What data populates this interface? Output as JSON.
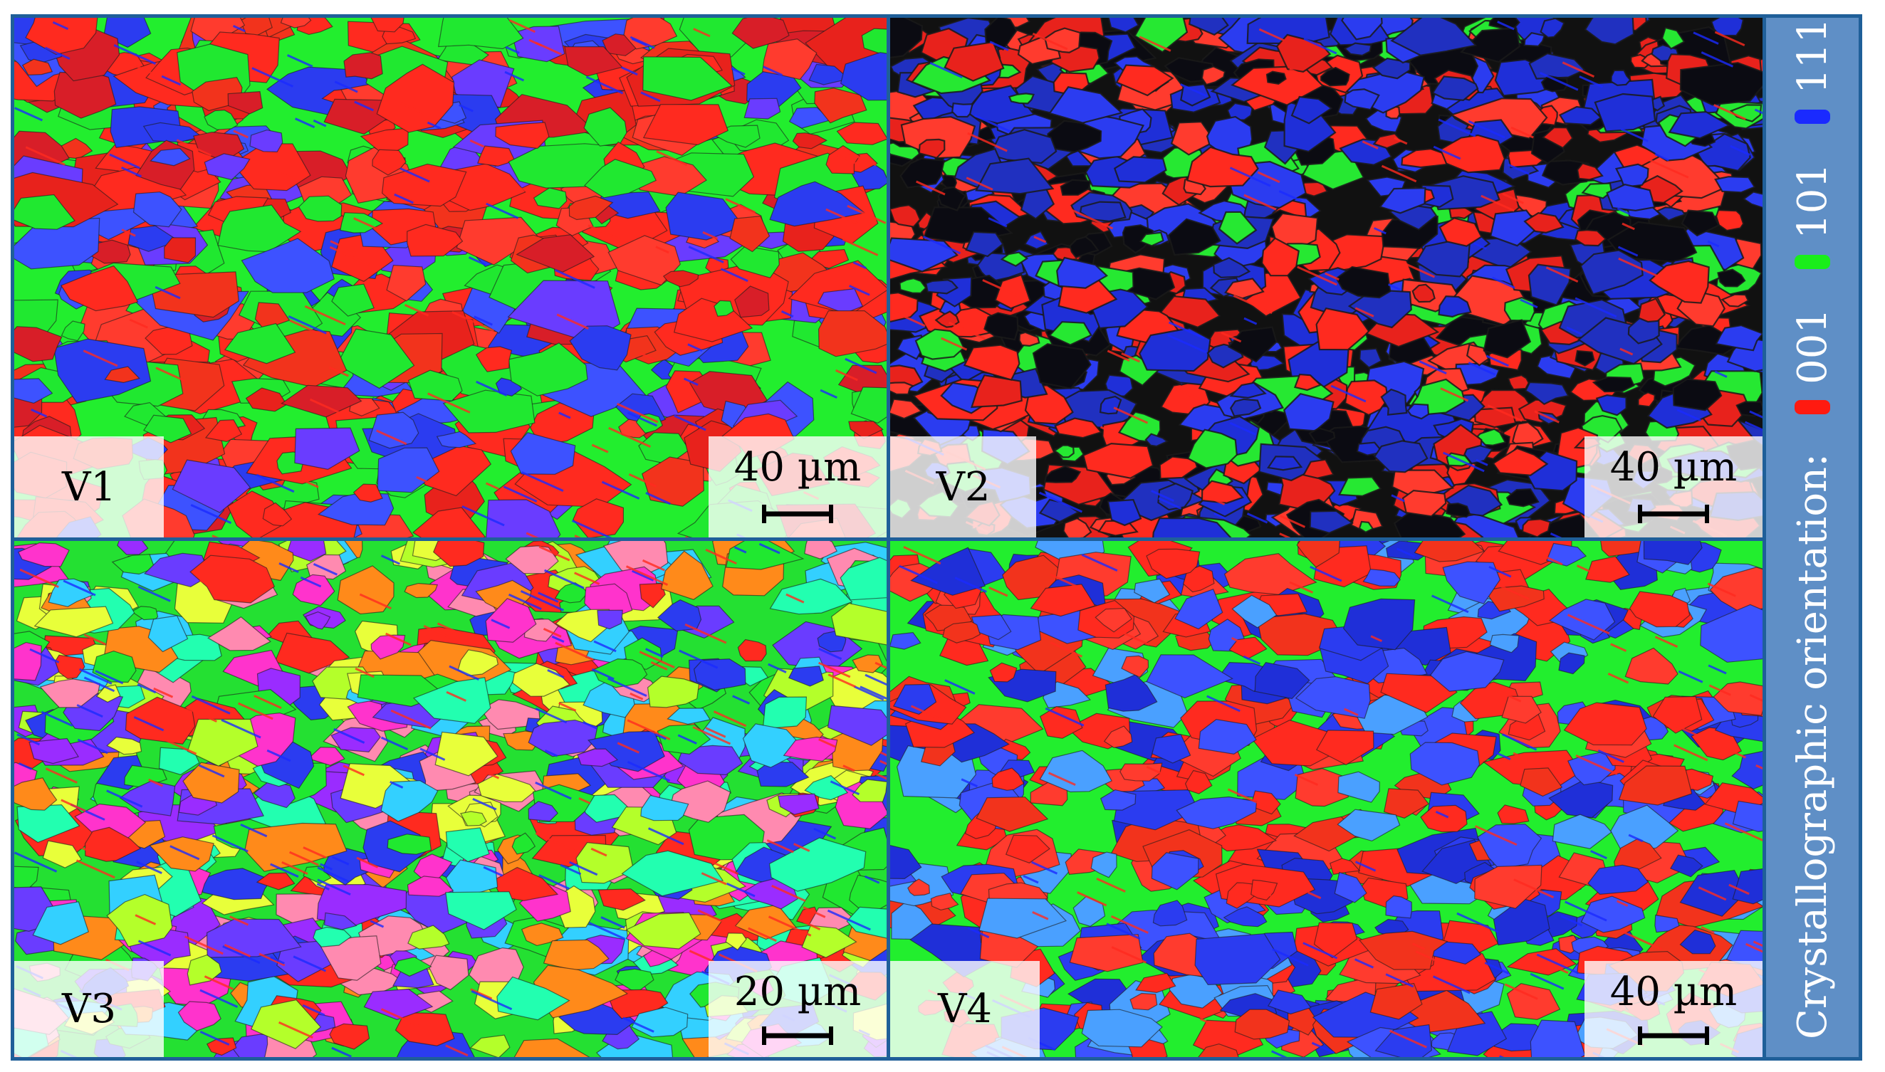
{
  "panels": [
    {
      "id": "V1",
      "label": "V1",
      "scale_label": "40 µm",
      "texture": "001-dominant, coarse grains",
      "palette": [
        "#ff2a1f",
        "#f2331c",
        "#ff3b2e",
        "#e8221c",
        "#ff2a1f",
        "#2b3cf0",
        "#3d52ff",
        "#6a3cff",
        "#20e830",
        "#20e830",
        "#ff2a1f",
        "#d81e28"
      ],
      "background": "#22ee2e"
    },
    {
      "id": "V2",
      "label": "V2",
      "scale_label": "40 µm",
      "texture": "001/111 mix, fine dark boundaries",
      "palette": [
        "#ff2a1f",
        "#e8221c",
        "#1f2fd8",
        "#2b3cf0",
        "#0b0b12",
        "#26e832",
        "#ff3b2e",
        "#2030c0"
      ],
      "background": "#111111"
    },
    {
      "id": "V3",
      "label": "V3",
      "scale_label": "20 µm",
      "texture": "random orientation",
      "palette": [
        "#ff2a1f",
        "#20e830",
        "#2b3cf0",
        "#ff33cc",
        "#9a2cff",
        "#33d0ff",
        "#ff8a1a",
        "#e8ff3a",
        "#ff8ab0",
        "#6a3cff",
        "#22ffb0",
        "#b4ff2a"
      ],
      "background": "#24e032"
    },
    {
      "id": "V4",
      "label": "V4",
      "scale_label": "40 µm",
      "texture": "001/111 with 101 matrix",
      "palette": [
        "#ff2a1f",
        "#f2331c",
        "#ff3b2e",
        "#2b3cf0",
        "#3d52ff",
        "#1f2fd8",
        "#ff2a1f",
        "#4aa0ff"
      ],
      "background": "#22ee2e"
    }
  ],
  "legend": {
    "title": "Crystallographic orientation:",
    "items": [
      {
        "label": "001",
        "color": "#ff1a10"
      },
      {
        "label": "101",
        "color": "#1aee1a"
      },
      {
        "label": "111",
        "color": "#1a2aff"
      }
    ]
  },
  "colors": {
    "frame": "#1f5f99",
    "legend_bg": "#5f8fc6"
  }
}
